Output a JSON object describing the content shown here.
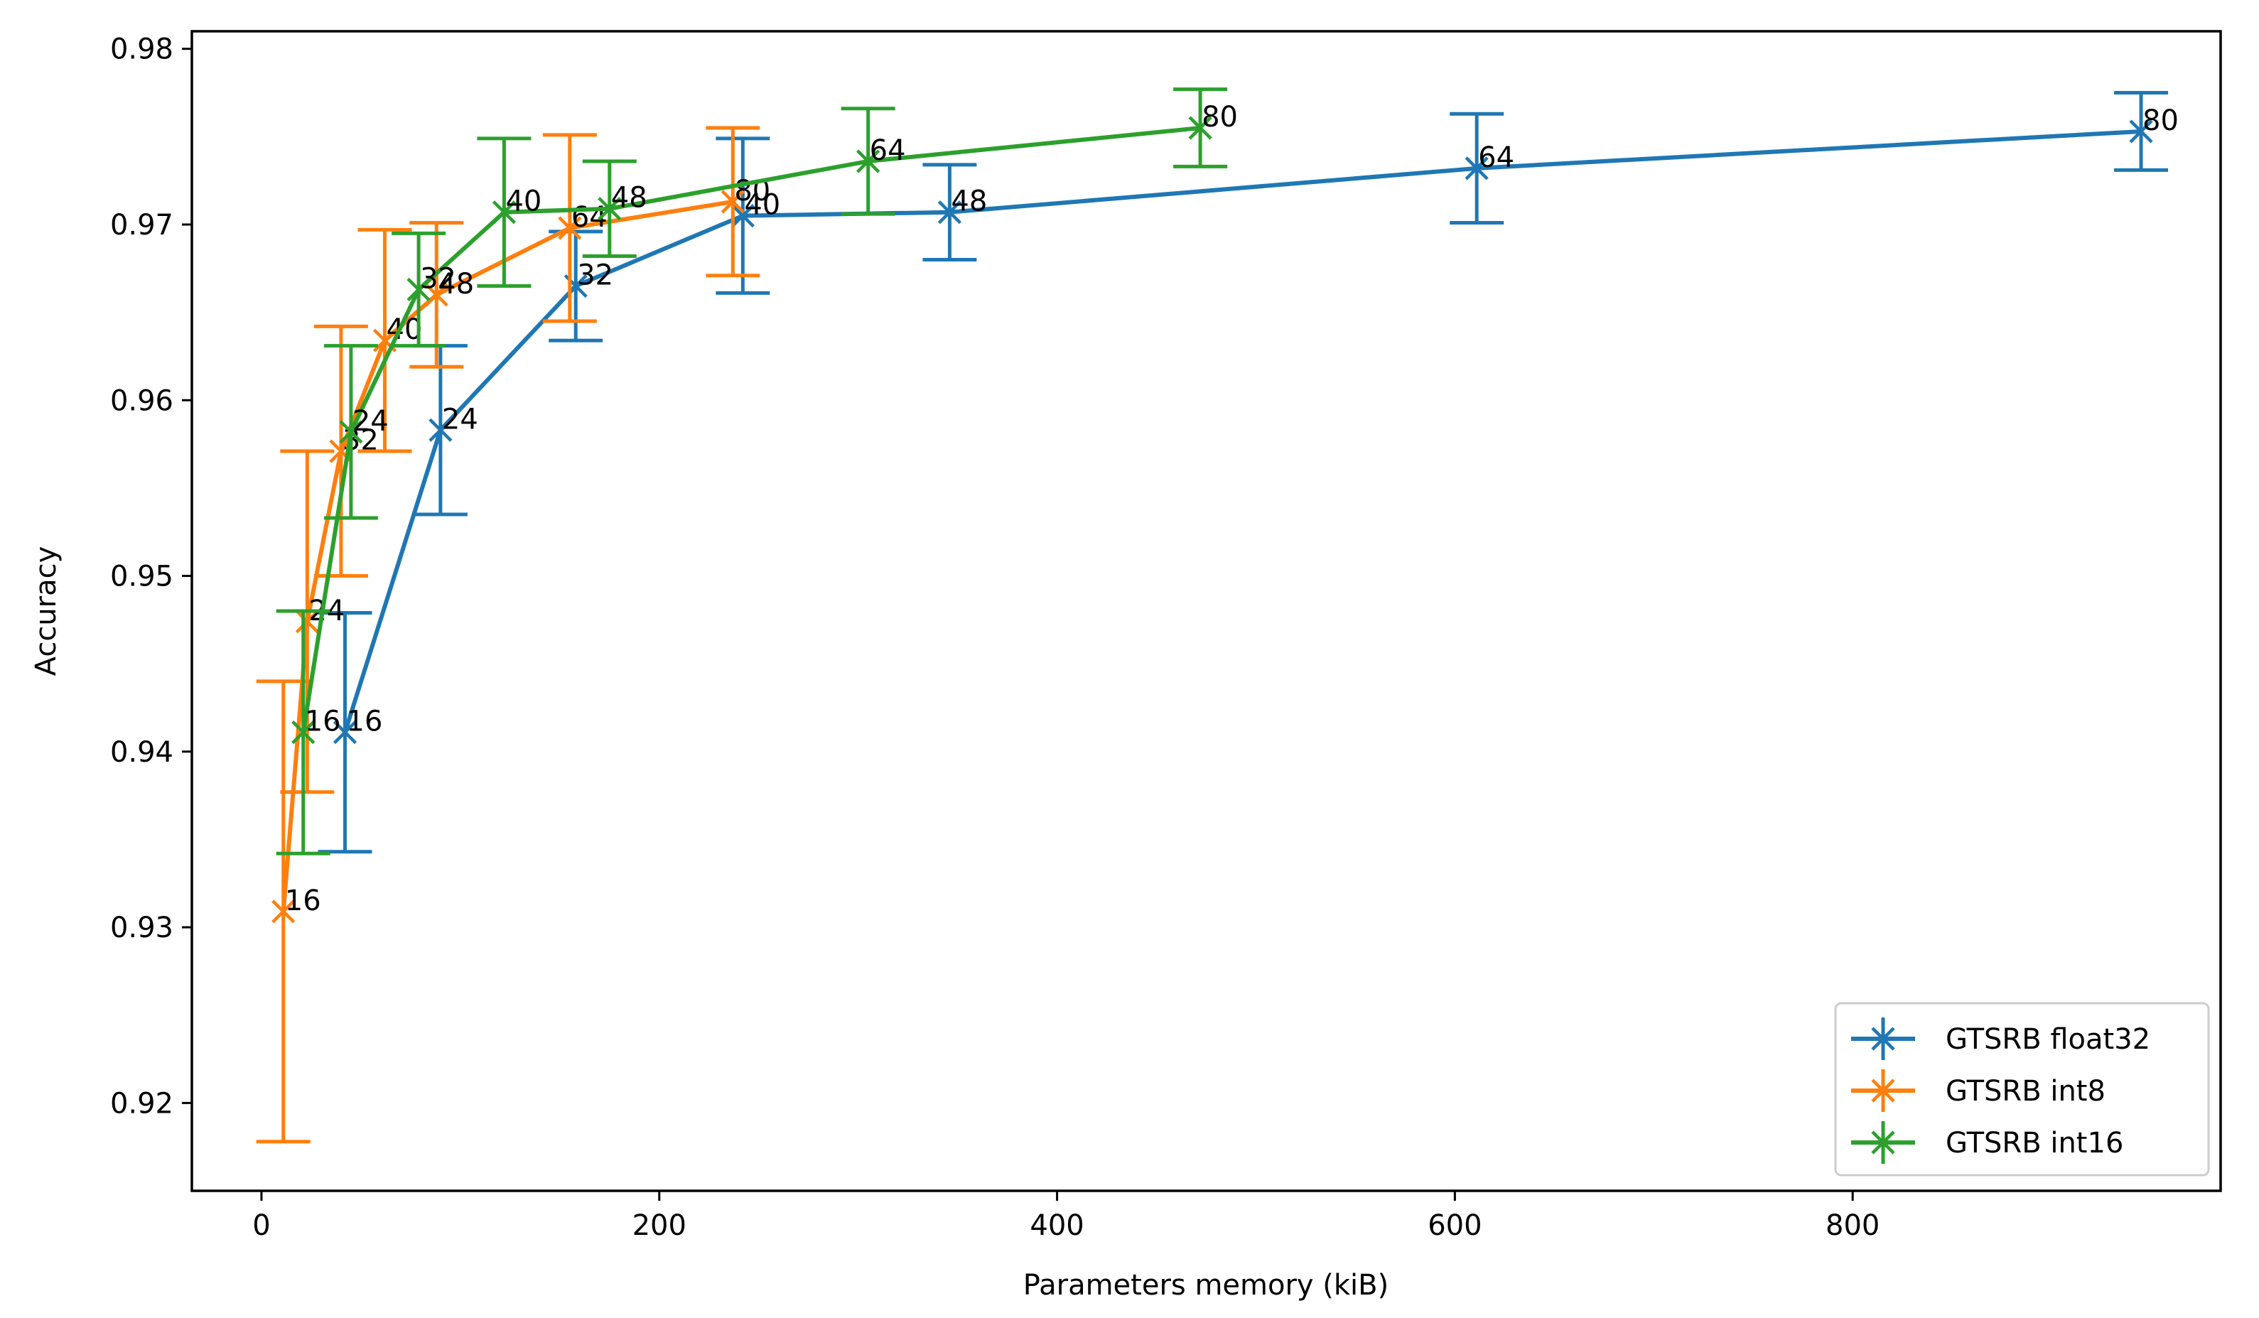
{
  "chart_data": {
    "type": "line",
    "title": "",
    "xlabel": "Parameters memory (kiB)",
    "ylabel": "Accuracy",
    "xlim": [
      -35,
      985
    ],
    "ylim": [
      0.915,
      0.981
    ],
    "xticks": [
      0,
      200,
      400,
      600,
      800
    ],
    "yticks": [
      0.92,
      0.93,
      0.94,
      0.95,
      0.96,
      0.97,
      0.98
    ],
    "xtick_labels": [
      "0",
      "200",
      "400",
      "600",
      "800"
    ],
    "ytick_labels": [
      "0.92",
      "0.93",
      "0.94",
      "0.95",
      "0.96",
      "0.97",
      "0.98"
    ],
    "grid": false,
    "legend_position": "lower-right",
    "series": [
      {
        "name": "GTSRB float32",
        "color": "#1f77b4",
        "points": [
          {
            "x": 42,
            "y": 0.9411,
            "err": 0.0068,
            "label": "16"
          },
          {
            "x": 90,
            "y": 0.9583,
            "err": 0.0048,
            "label": "24"
          },
          {
            "x": 158,
            "y": 0.9665,
            "err": 0.0031,
            "label": "32"
          },
          {
            "x": 242,
            "y": 0.9705,
            "err": 0.0044,
            "label": "40"
          },
          {
            "x": 346,
            "y": 0.9707,
            "err": 0.0027,
            "label": "48"
          },
          {
            "x": 611,
            "y": 0.9732,
            "err": 0.0031,
            "label": "64"
          },
          {
            "x": 945,
            "y": 0.9753,
            "err": 0.0022,
            "label": "80"
          }
        ]
      },
      {
        "name": "GTSRB int8",
        "color": "#ff7f0e",
        "points": [
          {
            "x": 11,
            "y": 0.9309,
            "err": 0.0131,
            "label": "16"
          },
          {
            "x": 23,
            "y": 0.9474,
            "err": 0.0097,
            "label": "24"
          },
          {
            "x": 40,
            "y": 0.9571,
            "err": 0.0071,
            "label": "32"
          },
          {
            "x": 62,
            "y": 0.9634,
            "err": 0.0063,
            "label": "40"
          },
          {
            "x": 88,
            "y": 0.966,
            "err": 0.0041,
            "label": "48"
          },
          {
            "x": 155,
            "y": 0.9698,
            "err": 0.0053,
            "label": "64"
          },
          {
            "x": 237,
            "y": 0.9713,
            "err": 0.0042,
            "label": "80"
          }
        ]
      },
      {
        "name": "GTSRB int16",
        "color": "#2ca02c",
        "points": [
          {
            "x": 21,
            "y": 0.9411,
            "err": 0.0069,
            "label": "16"
          },
          {
            "x": 45,
            "y": 0.9582,
            "err": 0.0049,
            "label": "24"
          },
          {
            "x": 79,
            "y": 0.9663,
            "err": 0.0032,
            "label": "32"
          },
          {
            "x": 122,
            "y": 0.9707,
            "err": 0.0042,
            "label": "40"
          },
          {
            "x": 175,
            "y": 0.9709,
            "err": 0.0027,
            "label": "48"
          },
          {
            "x": 305,
            "y": 0.9736,
            "err": 0.003,
            "label": "64"
          },
          {
            "x": 472,
            "y": 0.9755,
            "err": 0.0022,
            "label": "80"
          }
        ]
      }
    ]
  }
}
